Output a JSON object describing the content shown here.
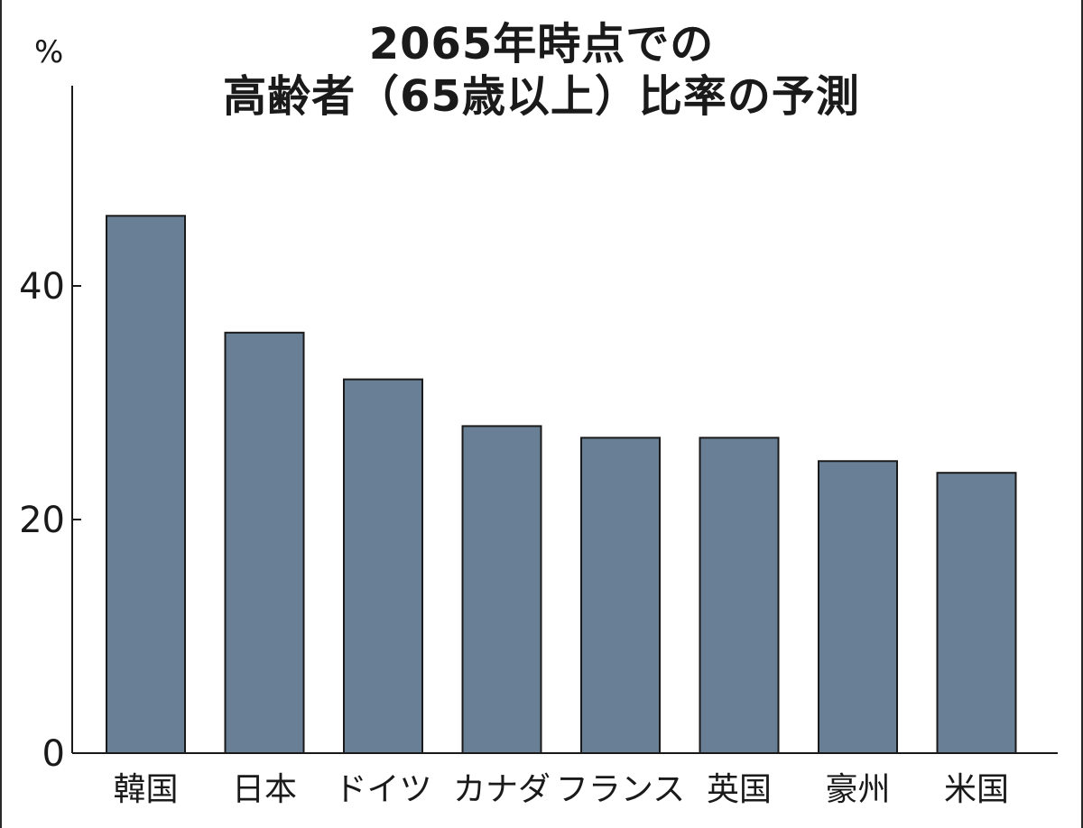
{
  "chart_data": {
    "type": "bar",
    "title_lines": [
      "2065年時点での",
      "高齢者（65歳以上）比率の予測"
    ],
    "ylabel": "%",
    "ylim": [
      0,
      50
    ],
    "yticks": [
      "0",
      "20",
      "40"
    ],
    "yticks_values": [
      0,
      20,
      40
    ],
    "categories": [
      "韓国",
      "日本",
      "ドイツ",
      "カナダ",
      "フランス",
      "英国",
      "豪州",
      "米国"
    ],
    "values": [
      46,
      36,
      32,
      28,
      27,
      27,
      25,
      24
    ],
    "bar_color": "#687f96",
    "bar_stroke": "#1a1a1a",
    "grid": false
  }
}
